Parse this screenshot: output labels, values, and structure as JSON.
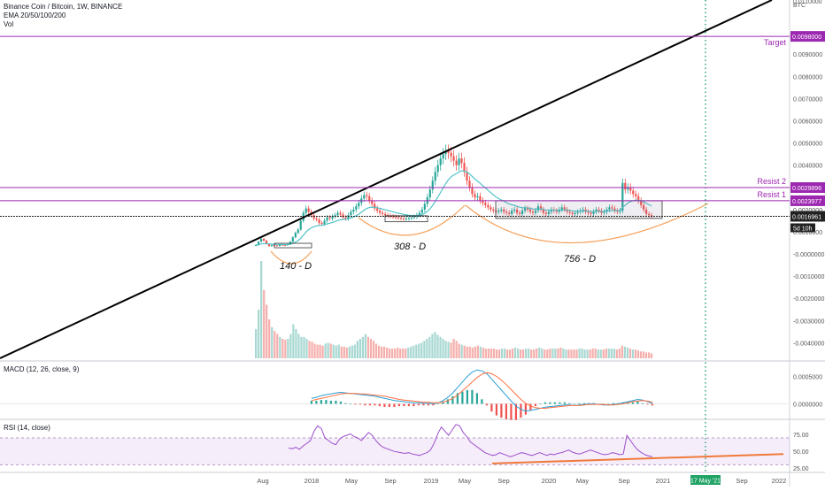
{
  "header": {
    "symbol_line": "Binance Coin / Bitcoin, 1W, BINANCE",
    "ema_line": "EMA 20/50/100/200",
    "vol_line": "Vol",
    "macd_line": "MACD (12, 26, close, 9)",
    "rsi_line": "RSI (14, close)"
  },
  "colors": {
    "up": "#26a69a",
    "down": "#ef5350",
    "ema": "#4fc3c7",
    "macd": "#2a9fd6",
    "signal": "#ff7043",
    "rsi": "#9c4dcc",
    "level": "#9c27b0",
    "trend": "#000000",
    "arc": "#f5a05a",
    "dotted": "#21a366"
  },
  "chart_data": [
    {
      "type": "candlestick",
      "panel": "price",
      "x_axis_labels": [
        "Aug",
        "2018",
        "May",
        "Sep",
        "2019",
        "May",
        "Sep",
        "2020",
        "May",
        "Sep",
        "2021",
        "17 May '21",
        "Sep",
        "2022"
      ],
      "y_axis_labels": [
        "0.0110000",
        "BTC",
        "0.0090000",
        "0.0080000",
        "0.0070000",
        "0.0060000",
        "0.0050000",
        "0.0040000",
        "0.0030000",
        "0.0020000",
        "0.0010000",
        "-0.0000000",
        "-0.0010000",
        "-0.0020000",
        "-0.0030000",
        "-0.0040000"
      ],
      "ylim": [
        -0.0047,
        0.0112
      ],
      "horizontal_levels": [
        {
          "name": "Target",
          "value": 0.0098,
          "label": "0.0098000"
        },
        {
          "name": "Resist 2",
          "value": 0.0029896,
          "label": "0.0029896"
        },
        {
          "name": "Resist 1",
          "value": 0.0023977,
          "label": "0.0023977"
        },
        {
          "name": "",
          "value": 0.0016961,
          "label": "0.0016961"
        }
      ],
      "countdown_label": "5d 10h",
      "annotations": [
        "140 - D",
        "308 - D",
        "756 - D"
      ],
      "close_series": [
        0.0004,
        0.00055,
        0.00068,
        0.0006,
        0.00045,
        0.00035,
        0.0004,
        0.00038,
        0.00036,
        0.00042,
        0.0004,
        0.00039,
        0.00043,
        0.00055,
        0.00075,
        0.00095,
        0.0011,
        0.0015,
        0.00185,
        0.00205,
        0.0019,
        0.00175,
        0.0016,
        0.00155,
        0.0014,
        0.00135,
        0.0015,
        0.00165,
        0.0016,
        0.0017,
        0.00175,
        0.00185,
        0.00178,
        0.00165,
        0.0016,
        0.00175,
        0.0019,
        0.002,
        0.00215,
        0.0023,
        0.0025,
        0.00265,
        0.0026,
        0.0024,
        0.00225,
        0.00205,
        0.00195,
        0.00185,
        0.0018,
        0.00175,
        0.00172,
        0.0017,
        0.00168,
        0.00165,
        0.00163,
        0.0016,
        0.00158,
        0.0016,
        0.00162,
        0.00165,
        0.00168,
        0.00175,
        0.00185,
        0.002,
        0.00225,
        0.00255,
        0.0029,
        0.0033,
        0.0037,
        0.004,
        0.0043,
        0.0045,
        0.00465,
        0.00455,
        0.0044,
        0.0042,
        0.004,
        0.0043,
        0.0041,
        0.0037,
        0.0033,
        0.003,
        0.0027,
        0.00255,
        0.0026,
        0.0024,
        0.0023,
        0.0022,
        0.0021,
        0.002,
        0.00195,
        0.0019,
        0.00195,
        0.002,
        0.0019,
        0.00185,
        0.0018,
        0.00195,
        0.002,
        0.00185,
        0.0018,
        0.00195,
        0.00205,
        0.002,
        0.0019,
        0.00185,
        0.00195,
        0.00215,
        0.002,
        0.00185,
        0.0018,
        0.0019,
        0.002,
        0.00195,
        0.0019,
        0.002,
        0.0021,
        0.002,
        0.0019,
        0.00185,
        0.0018,
        0.00185,
        0.0019,
        0.00195,
        0.002,
        0.0019,
        0.00185,
        0.0018,
        0.0019,
        0.002,
        0.00195,
        0.00185,
        0.0019,
        0.002,
        0.0021,
        0.00205,
        0.00195,
        0.0019,
        0.00195,
        0.0032,
        0.0029,
        0.003,
        0.00285,
        0.0027,
        0.0026,
        0.0024,
        0.0022,
        0.002,
        0.0018,
        0.00175,
        0.0017
      ]
    },
    {
      "type": "bar",
      "panel": "volume",
      "note": "relative weekly volume",
      "values": [
        0.3,
        0.5,
        1.0,
        0.7,
        0.55,
        0.4,
        0.32,
        0.28,
        0.25,
        0.22,
        0.2,
        0.19,
        0.2,
        0.25,
        0.35,
        0.3,
        0.25,
        0.22,
        0.22,
        0.2,
        0.18,
        0.17,
        0.15,
        0.14,
        0.14,
        0.13,
        0.15,
        0.16,
        0.15,
        0.14,
        0.13,
        0.14,
        0.12,
        0.12,
        0.11,
        0.12,
        0.13,
        0.14,
        0.18,
        0.2,
        0.22,
        0.25,
        0.22,
        0.2,
        0.18,
        0.15,
        0.13,
        0.12,
        0.12,
        0.11,
        0.1,
        0.1,
        0.1,
        0.11,
        0.1,
        0.1,
        0.1,
        0.11,
        0.12,
        0.13,
        0.14,
        0.15,
        0.16,
        0.18,
        0.2,
        0.22,
        0.25,
        0.27,
        0.24,
        0.22,
        0.2,
        0.18,
        0.17,
        0.16,
        0.2,
        0.18,
        0.15,
        0.14,
        0.13,
        0.12,
        0.12,
        0.11,
        0.12,
        0.13,
        0.12,
        0.11,
        0.1,
        0.1,
        0.1,
        0.1,
        0.09,
        0.09,
        0.1,
        0.1,
        0.09,
        0.09,
        0.1,
        0.11,
        0.1,
        0.09,
        0.09,
        0.1,
        0.1,
        0.09,
        0.09,
        0.1,
        0.11,
        0.1,
        0.09,
        0.09,
        0.1,
        0.1,
        0.1,
        0.1,
        0.11,
        0.1,
        0.09,
        0.09,
        0.09,
        0.09,
        0.09,
        0.1,
        0.1,
        0.09,
        0.09,
        0.09,
        0.1,
        0.1,
        0.09,
        0.09,
        0.09,
        0.1,
        0.1,
        0.1,
        0.1,
        0.09,
        0.1,
        0.13,
        0.12,
        0.11,
        0.1,
        0.09,
        0.09,
        0.08,
        0.07,
        0.07,
        0.06,
        0.06,
        0.05
      ]
    },
    {
      "type": "line",
      "panel": "macd",
      "y_axis_labels": [
        "0.0005000",
        "0.0000000"
      ],
      "ylim": [
        -0.00025,
        0.00075
      ],
      "series": [
        {
          "name": "",
          "values": [
            0.0001,
            0.00012,
            0.00015,
            0.00017,
            0.00018,
            0.0002,
            0.00021,
            0.0002,
            0.00019,
            0.00018,
            0.00017,
            0.00016,
            0.00015,
            0.00014,
            0.00012,
            0.0001,
            8e-05,
            6e-05,
            5e-05,
            4e-05,
            3e-05,
            2e-05,
            2e-05,
            1e-05,
            1e-05,
            0.0,
            2e-05,
            6e-05,
            0.00012,
            0.0002,
            0.0003,
            0.0004,
            0.0005,
            0.00058,
            0.00062,
            0.0006,
            0.00055,
            0.00045,
            0.00035,
            0.00025,
            0.00015,
            5e-05,
            -4e-05,
            -0.0001,
            -0.00013,
            -0.00012,
            -0.0001,
            -8e-05,
            -6e-05,
            -5e-05,
            -4e-05,
            -3e-05,
            -2e-05,
            -2e-05,
            -3e-05,
            -2e-05,
            -1e-05,
            0.0,
            0.0,
            -1e-05,
            -2e-05,
            -2e-05,
            -1e-05,
            0.0,
            2e-05,
            4e-05,
            6e-05,
            8e-05,
            7e-05,
            4e-05,
            1e-05
          ]
        },
        {
          "name": "",
          "values": [
            6e-05,
            8e-05,
            0.0001,
            0.00012,
            0.00014,
            0.00016,
            0.00018,
            0.00019,
            0.00019,
            0.00019,
            0.00018,
            0.00018,
            0.00017,
            0.00016,
            0.00015,
            0.00014,
            0.00012,
            0.0001,
            8e-05,
            7e-05,
            6e-05,
            5e-05,
            4e-05,
            3e-05,
            3e-05,
            2e-05,
            2e-05,
            3e-05,
            6e-05,
            0.0001,
            0.00016,
            0.00024,
            0.00032,
            0.0004,
            0.00048,
            0.00054,
            0.00057,
            0.00055,
            0.0005,
            0.00043,
            0.00035,
            0.00026,
            0.00017,
            8e-05,
            1e-05,
            -4e-05,
            -7e-05,
            -8e-05,
            -8e-05,
            -7e-05,
            -6e-05,
            -5e-05,
            -4e-05,
            -3e-05,
            -3e-05,
            -3e-05,
            -2e-05,
            -1e-05,
            -1e-05,
            -1e-05,
            -1e-05,
            -2e-05,
            -2e-05,
            -1e-05,
            0.0,
            2e-05,
            4e-05,
            5e-05,
            6e-05,
            5e-05,
            3e-05
          ]
        }
      ]
    },
    {
      "type": "line",
      "panel": "rsi",
      "y_axis_labels": [
        "75.00",
        "50.00",
        "25.00"
      ],
      "ylim": [
        20,
        95
      ],
      "band": [
        30,
        70
      ],
      "series": [
        {
          "name": "",
          "values": [
            55,
            54,
            56,
            53,
            58,
            62,
            66,
            80,
            88,
            84,
            70,
            66,
            62,
            60,
            68,
            72,
            74,
            76,
            72,
            70,
            66,
            72,
            78,
            74,
            66,
            60,
            56,
            54,
            52,
            50,
            49,
            48,
            47,
            48,
            46,
            45,
            44,
            46,
            48,
            52,
            62,
            76,
            86,
            80,
            74,
            82,
            90,
            88,
            78,
            72,
            64,
            60,
            56,
            52,
            48,
            46,
            44,
            45,
            48,
            46,
            44,
            42,
            44,
            46,
            48,
            47,
            45,
            44,
            46,
            48,
            46,
            44,
            46,
            45,
            47,
            48,
            50,
            52,
            49,
            47,
            46,
            48,
            50,
            52,
            50,
            48,
            46,
            45,
            46,
            48,
            47,
            45,
            46,
            74,
            66,
            58,
            52,
            48,
            45,
            43,
            42
          ]
        },
        {
          "name": "",
          "values": [
            32,
            46
          ]
        }
      ]
    }
  ]
}
